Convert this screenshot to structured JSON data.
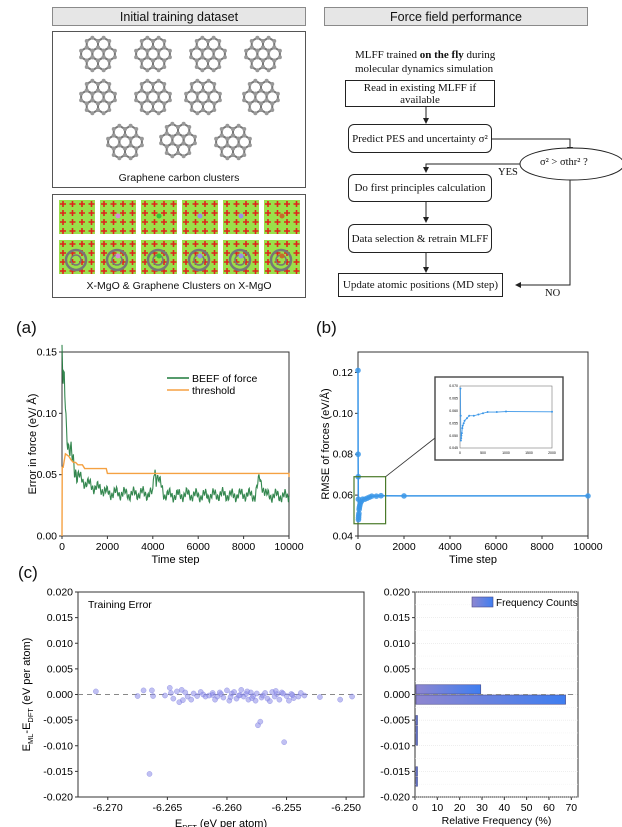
{
  "top_left": {
    "header": "Initial training dataset",
    "graphene_caption": "Graphene carbon clusters",
    "graphene_cluster_count": 11,
    "mgo_caption": "X-MgO & Graphene Clusters on X-MgO",
    "mgo_tile_count": 12
  },
  "top_right": {
    "header": "Force field performance",
    "intro_prefix": "MLFF trained ",
    "intro_bold": "on the fly",
    "intro_suffix": " during",
    "intro_line2": "molecular dynamics simulation",
    "steps": {
      "read": "Read in existing MLFF if available",
      "predict": "Predict PES and uncertainty σ²",
      "decision": "σ² > σthr² ?",
      "first_principles": "Do first principles calculation",
      "retrain": "Data selection & retrain MLFF",
      "update": "Update atomic positions (MD step)"
    },
    "yes_label": "YES",
    "no_label": "NO"
  },
  "colors": {
    "beef_green": "#1e7a3c",
    "threshold_orange": "#f5a142",
    "rmse_blue": "#3a96e8",
    "zoom_box_green": "#4a7a2a",
    "scatter_purple": "#8c8ce8",
    "bar_start": "#8e86d0",
    "bar_end": "#3f7ef0"
  },
  "chart_data": [
    {
      "id": "a",
      "panel_label": "(a)",
      "type": "line",
      "xlabel": "Time step",
      "ylabel": "Error in force (eV/ Å)",
      "xlim": [
        0,
        10000
      ],
      "ylim": [
        0,
        0.15
      ],
      "xticks": [
        "0",
        "2000",
        "4000",
        "6000",
        "8000",
        "10000"
      ],
      "yticks": [
        "0.00",
        "0.05",
        "0.10",
        "0.15"
      ],
      "legend": [
        "BEEF of force",
        "threshold"
      ],
      "legend_position": "top-right",
      "series": [
        {
          "name": "BEEF of force",
          "x": [
            0,
            50,
            100,
            150,
            200,
            250,
            300,
            400,
            500,
            600,
            700,
            800,
            900,
            1000,
            1200,
            1400,
            1600,
            1800,
            2000,
            2500,
            3000,
            3500,
            4000,
            4050,
            4500,
            5000,
            5500,
            6000,
            6500,
            7000,
            7500,
            8000,
            8500,
            8700,
            9000,
            9500,
            10000
          ],
          "y": [
            0.15,
            0.12,
            0.13,
            0.11,
            0.09,
            0.08,
            0.07,
            0.065,
            0.06,
            0.055,
            0.05,
            0.047,
            0.045,
            0.044,
            0.042,
            0.04,
            0.039,
            0.038,
            0.035,
            0.035,
            0.034,
            0.035,
            0.034,
            0.056,
            0.034,
            0.033,
            0.034,
            0.033,
            0.033,
            0.034,
            0.033,
            0.034,
            0.033,
            0.047,
            0.033,
            0.033,
            0.032
          ]
        },
        {
          "name": "threshold",
          "x": [
            0,
            10,
            50,
            150,
            300,
            400,
            500,
            600,
            700,
            900,
            1000,
            1950,
            2000,
            9950,
            10000,
            10000
          ],
          "y": [
            0.0,
            0.056,
            0.056,
            0.067,
            0.065,
            0.062,
            0.06,
            0.06,
            0.058,
            0.058,
            0.055,
            0.055,
            0.051,
            0.051,
            0.051,
            0.048
          ]
        }
      ]
    },
    {
      "id": "b",
      "panel_label": "(b)",
      "type": "line",
      "xlabel": "Time step",
      "ylabel": "RMSE of forces (eV/Å)",
      "xlim": [
        0,
        10000
      ],
      "ylim": [
        0.04,
        0.13
      ],
      "xticks": [
        "0",
        "2000",
        "4000",
        "6000",
        "8000",
        "10000"
      ],
      "yticks": [
        "0.04",
        "0.06",
        "0.08",
        "0.10",
        "0.12"
      ],
      "series": [
        {
          "name": "RMSE",
          "x": [
            0,
            5,
            10,
            15,
            20,
            25,
            30,
            40,
            50,
            60,
            80,
            100,
            150,
            200,
            300,
            400,
            500,
            600,
            800,
            1000,
            2000,
            10000
          ],
          "y": [
            0.121,
            0.08,
            0.069,
            0.058,
            0.048,
            0.049,
            0.05,
            0.051,
            0.053,
            0.054,
            0.055,
            0.056,
            0.057,
            0.058,
            0.058,
            0.0585,
            0.059,
            0.0595,
            0.0595,
            0.0597,
            0.0596,
            0.0596
          ]
        }
      ],
      "inset": {
        "xlim": [
          0,
          2000
        ],
        "ylim": [
          0.045,
          0.07
        ],
        "xticks": [
          "0",
          "500",
          "1000",
          "1500",
          "2000"
        ],
        "yticks": [
          "0.045",
          "0.050",
          "0.055",
          "0.060",
          "0.065",
          "0.070"
        ],
        "zoom_region": {
          "xlim": [
            0,
            1200
          ],
          "ylim": [
            0.046,
            0.069
          ]
        }
      }
    },
    {
      "id": "c-scatter",
      "panel_label": "(c)",
      "type": "scatter",
      "annotation": "Training Error",
      "xlabel_main": "E",
      "xlabel_sub": "DFT",
      "xlabel_rest": " (eV per atom)",
      "ylabel_a": "E",
      "ylabel_sub1": "ML",
      "ylabel_mid": "-E",
      "ylabel_sub2": "DFT",
      "ylabel_rest": " (eV per atom)",
      "xlim": [
        -6.2725,
        -6.2485
      ],
      "ylim": [
        -0.02,
        0.02
      ],
      "xticks": [
        "-6.270",
        "-6.265",
        "-6.260",
        "-6.255",
        "-6.250"
      ],
      "yticks": [
        "-0.020",
        "-0.015",
        "-0.010",
        "-0.005",
        "0.000",
        "0.005",
        "0.010",
        "0.015",
        "0.020"
      ],
      "reference_line_y": 0.0,
      "points": [
        [
          -6.271,
          0.0006
        ],
        [
          -6.2675,
          -0.0003
        ],
        [
          -6.267,
          0.0008
        ],
        [
          -6.2663,
          0.0008
        ],
        [
          -6.2662,
          -0.0003
        ],
        [
          -6.2652,
          -0.0002
        ],
        [
          -6.2648,
          0.0013
        ],
        [
          -6.2647,
          0.0003
        ],
        [
          -6.2645,
          -0.0008
        ],
        [
          -6.2642,
          0.0006
        ],
        [
          -6.264,
          -0.0015
        ],
        [
          -6.2638,
          0.0009
        ],
        [
          -6.2637,
          -0.0011
        ],
        [
          -6.2635,
          0.0004
        ],
        [
          -6.2633,
          -0.0004
        ],
        [
          -6.263,
          -0.001
        ],
        [
          -6.2628,
          0.0002
        ],
        [
          -6.2625,
          -0.0003
        ],
        [
          -6.2622,
          0.0005
        ],
        [
          -6.262,
          0.0
        ],
        [
          -6.2618,
          -0.0004
        ],
        [
          -6.2615,
          -0.0002
        ],
        [
          -6.2612,
          0.0003
        ],
        [
          -6.261,
          -0.001
        ],
        [
          -6.2608,
          -0.0004
        ],
        [
          -6.2605,
          0.0001
        ],
        [
          -6.2603,
          -0.0006
        ],
        [
          -6.26,
          0.0008
        ],
        [
          -6.2598,
          -0.0012
        ],
        [
          -6.2596,
          0.0002
        ],
        [
          -6.2594,
          0.0005
        ],
        [
          -6.2592,
          -0.0008
        ],
        [
          -6.259,
          -0.0002
        ],
        [
          -6.2588,
          0.0009
        ],
        [
          -6.2586,
          -0.0004
        ],
        [
          -6.2584,
          0.0001
        ],
        [
          -6.2582,
          -0.001
        ],
        [
          -6.258,
          0.0004
        ],
        [
          -6.2578,
          -0.0003
        ],
        [
          -6.2576,
          -0.0012
        ],
        [
          -6.2575,
          0.0002
        ],
        [
          -6.2574,
          -0.006
        ],
        [
          -6.2572,
          -0.0053
        ],
        [
          -6.257,
          -0.0002
        ],
        [
          -6.2568,
          0.0003
        ],
        [
          -6.2566,
          -0.0008
        ],
        [
          -6.2564,
          -0.0013
        ],
        [
          -6.2562,
          0.0005
        ],
        [
          -6.256,
          -0.0004
        ],
        [
          -6.2558,
          0.0001
        ],
        [
          -6.2556,
          -0.001
        ],
        [
          -6.2554,
          0.0004
        ],
        [
          -6.2552,
          -0.0093
        ],
        [
          -6.255,
          -0.0003
        ],
        [
          -6.2548,
          -0.0012
        ],
        [
          -6.2546,
          0.0001
        ],
        [
          -6.2544,
          -0.0007
        ],
        [
          -6.254,
          -0.0004
        ],
        [
          -6.2538,
          0.0003
        ],
        [
          -6.2535,
          -0.0002
        ],
        [
          -6.2522,
          -0.0005
        ],
        [
          -6.2505,
          -0.001
        ],
        [
          -6.2495,
          -0.0004
        ],
        [
          -6.2665,
          -0.0155
        ],
        [
          -6.2612,
          -0.0001
        ],
        [
          -6.2597,
          -0.0005
        ],
        [
          -6.2583,
          0.0006
        ],
        [
          -6.2571,
          -0.0006
        ],
        [
          -6.2559,
          0.0007
        ],
        [
          -6.2553,
          0.0002
        ],
        [
          -6.2545,
          -0.0001
        ],
        [
          -6.2606,
          0.0004
        ],
        [
          -6.2589,
          -0.0001
        ],
        [
          -6.2579,
          -0.0007
        ]
      ]
    },
    {
      "id": "c-histogram",
      "type": "bar",
      "orientation": "horizontal",
      "legend": [
        "Frequency Counts"
      ],
      "legend_position": "top-right",
      "xlabel": "Relative Frequency (%)",
      "xlim": [
        0,
        73
      ],
      "ylim": [
        -0.02,
        0.02
      ],
      "xticks": [
        "0",
        "10",
        "20",
        "30",
        "40",
        "50",
        "60",
        "70"
      ],
      "yticks": [
        "-0.020",
        "-0.015",
        "-0.010",
        "-0.005",
        "0.000",
        "0.005",
        "0.010",
        "0.015",
        "0.020"
      ],
      "reference_line_y": 0.0,
      "bins": [
        {
          "from": 0.0,
          "to": 0.002,
          "value": 29
        },
        {
          "from": -0.002,
          "to": 0.0,
          "value": 67
        },
        {
          "from": -0.006,
          "to": -0.004,
          "value": 0.6
        },
        {
          "from": -0.01,
          "to": -0.006,
          "value": 0.6
        },
        {
          "from": -0.016,
          "to": -0.014,
          "value": 0.6
        },
        {
          "from": -0.018,
          "to": -0.016,
          "value": 0.6
        }
      ]
    }
  ]
}
